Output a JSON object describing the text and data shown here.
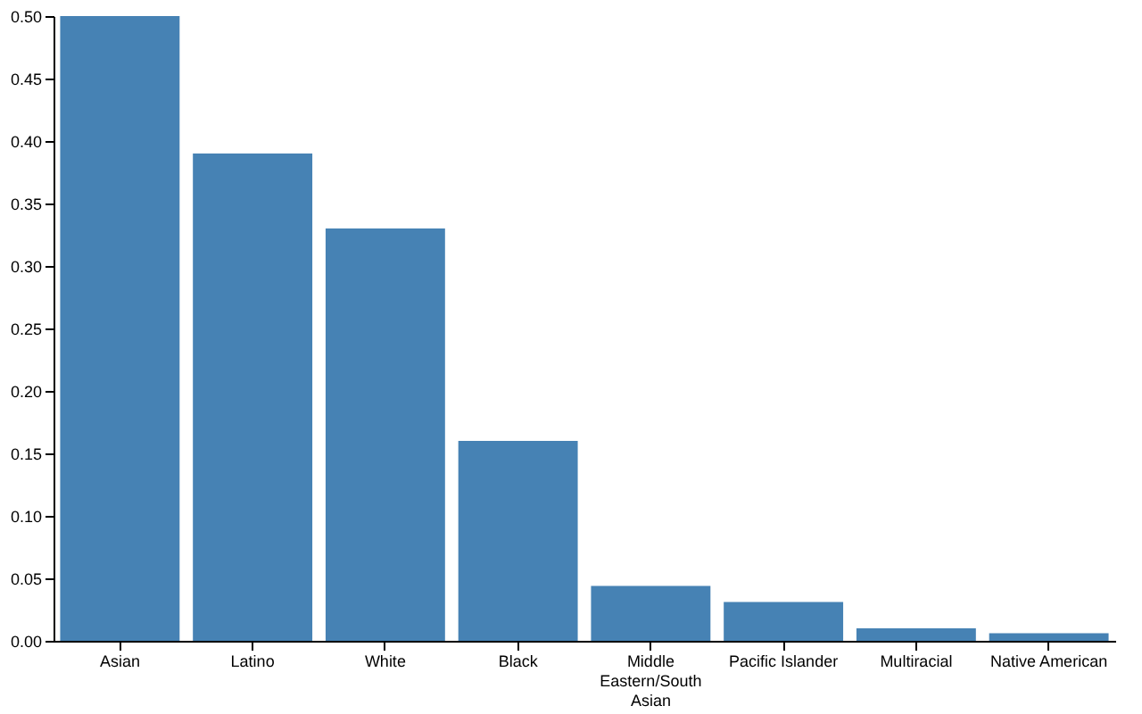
{
  "chart_data": {
    "type": "bar",
    "categories": [
      "Asian",
      "Latino",
      "White",
      "Black",
      "Middle Eastern/South Asian",
      "Pacific Islander",
      "Multiracial",
      "Native American"
    ],
    "values": [
      0.5,
      0.39,
      0.33,
      0.16,
      0.044,
      0.031,
      0.01,
      0.006
    ],
    "color": "#4682b4",
    "ylim": [
      0,
      0.5
    ],
    "yticks": [
      {
        "value": 0,
        "label": "0.00"
      },
      {
        "value": 0.05,
        "label": "0.05"
      },
      {
        "value": 0.1,
        "label": "0.10"
      },
      {
        "value": 0.15,
        "label": "0.15"
      },
      {
        "value": 0.2,
        "label": "0.20"
      },
      {
        "value": 0.25,
        "label": "0.25"
      },
      {
        "value": 0.3,
        "label": "0.30"
      },
      {
        "value": 0.35,
        "label": "0.35"
      },
      {
        "value": 0.4,
        "label": "0.40"
      },
      {
        "value": 0.45,
        "label": "0.45"
      },
      {
        "value": 0.5,
        "label": "0.50"
      }
    ],
    "grid": false
  }
}
